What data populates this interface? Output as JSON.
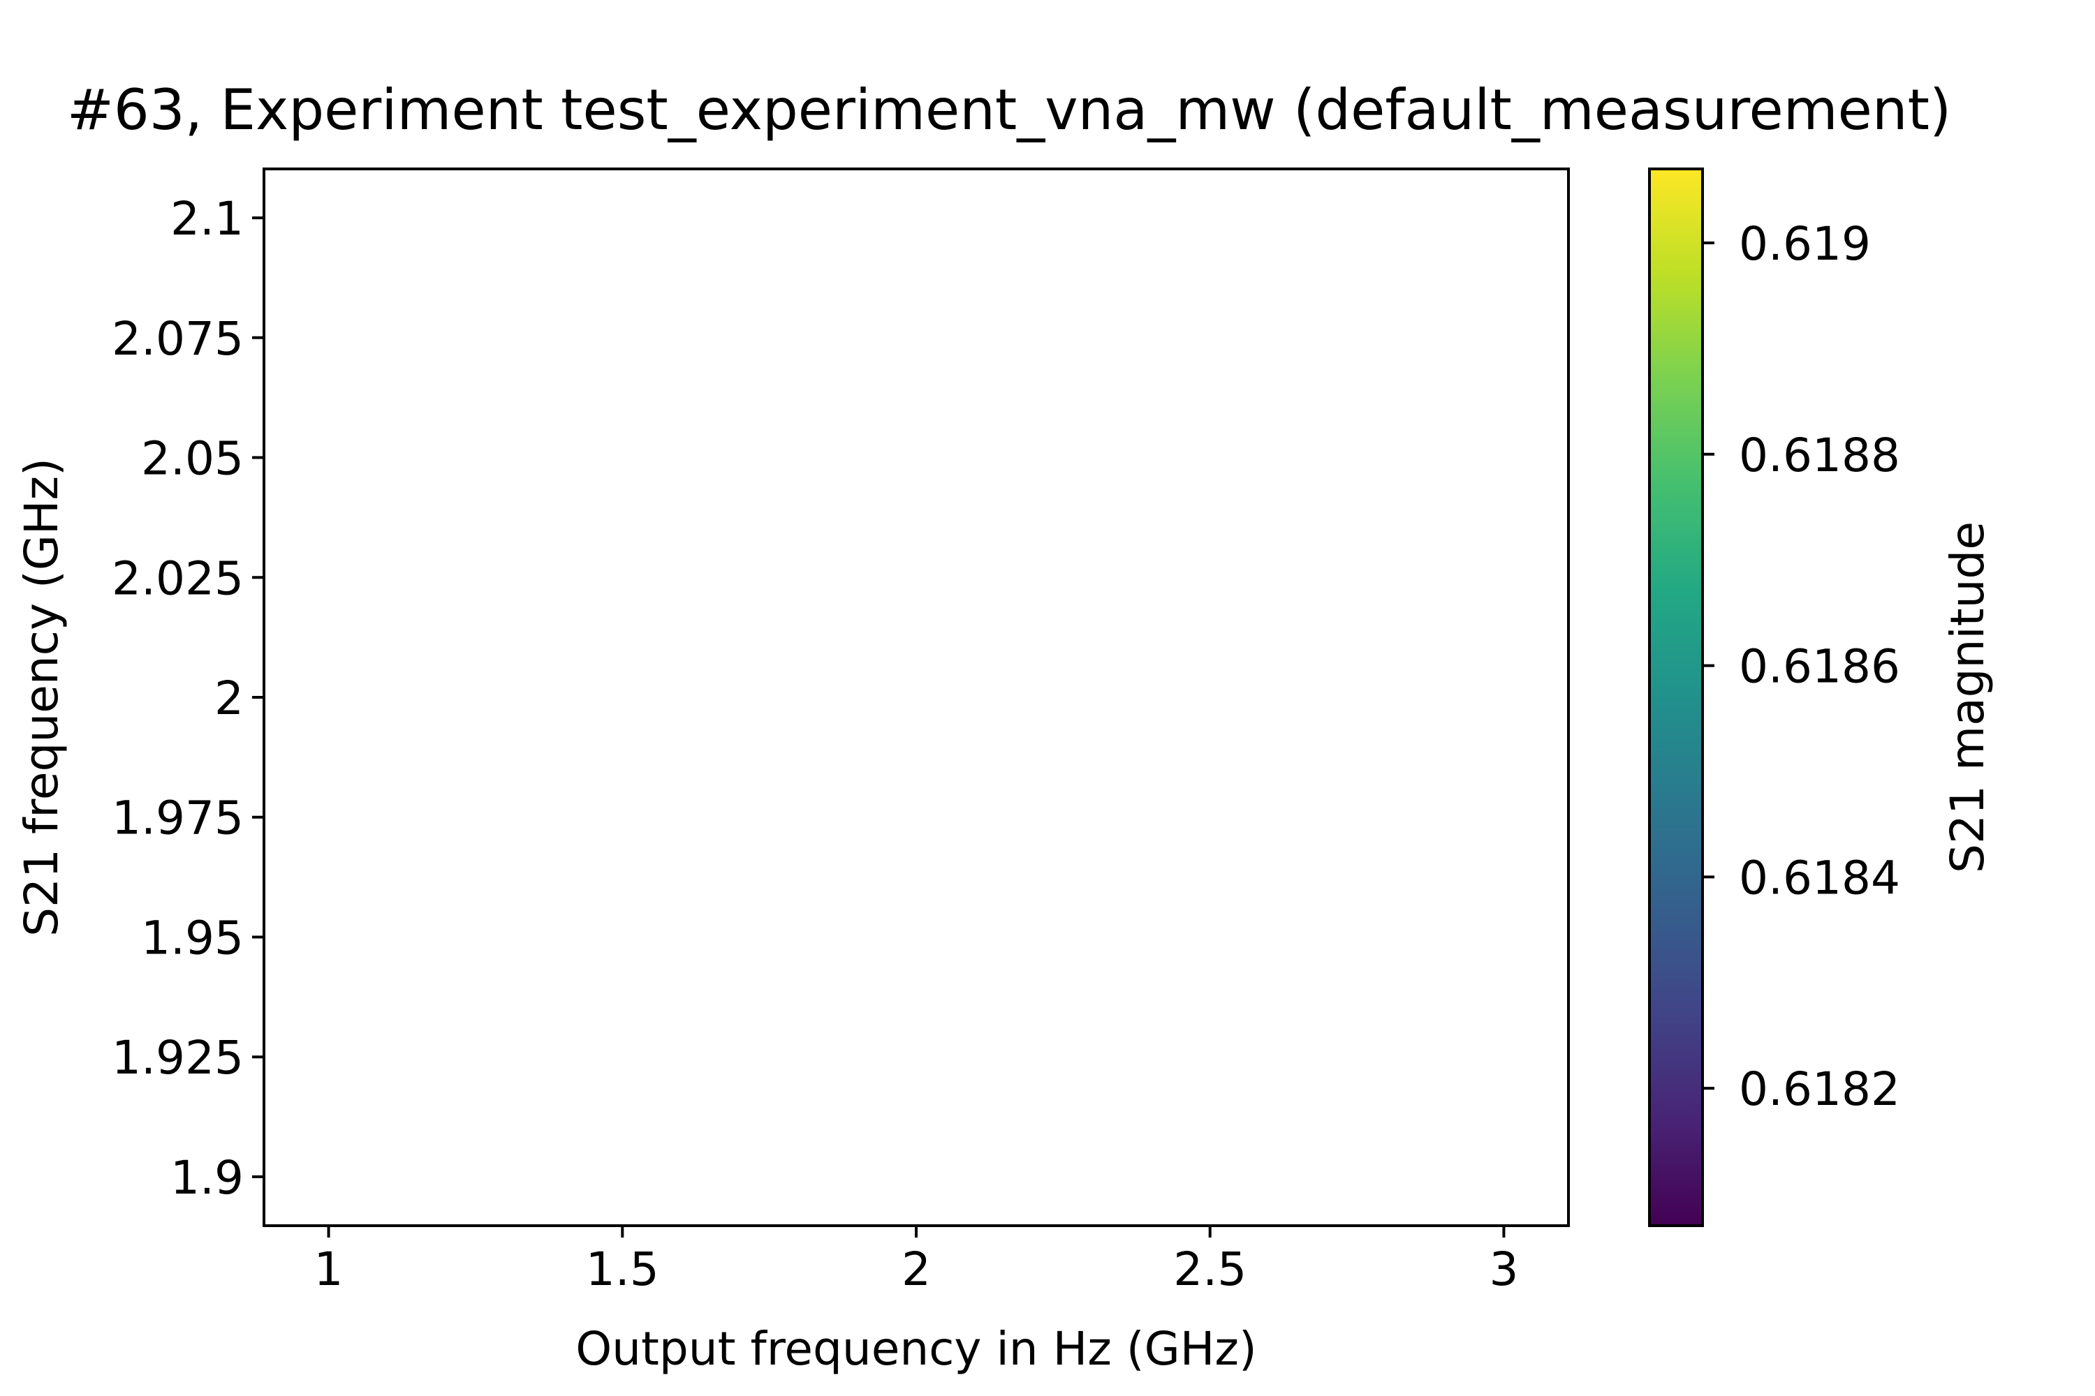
{
  "chart_data": {
    "type": "heatmap",
    "title": "#63, Experiment test_experiment_vna_mw (default_measurement)",
    "xlabel": "Output frequency in Hz (GHz)",
    "ylabel": "S21 frequency (GHz)",
    "xlim": [
      0.89,
      3.11
    ],
    "ylim": [
      1.8898,
      2.1102
    ],
    "x_ticks": [
      1,
      1.5,
      2,
      2.5,
      3
    ],
    "x_tick_labels": [
      "1",
      "1.5",
      "2",
      "2.5",
      "3"
    ],
    "y_ticks": [
      1.9,
      1.925,
      1.95,
      1.975,
      2,
      2.025,
      2.05,
      2.075,
      2.1
    ],
    "y_tick_labels": [
      "1.9",
      "1.925",
      "1.95",
      "1.975",
      "2",
      "2.025",
      "2.05",
      "2.075",
      "2.1"
    ],
    "grid": false,
    "values": [],
    "colorbar": {
      "label": "S21 magnitude",
      "colormap": "viridis",
      "range": [
        0.61807,
        0.61907
      ],
      "ticks": [
        0.6182,
        0.6184,
        0.6186,
        0.6188,
        0.619
      ],
      "tick_labels": [
        "0.6182",
        "0.6184",
        "0.6186",
        "0.6188",
        "0.619"
      ]
    }
  }
}
